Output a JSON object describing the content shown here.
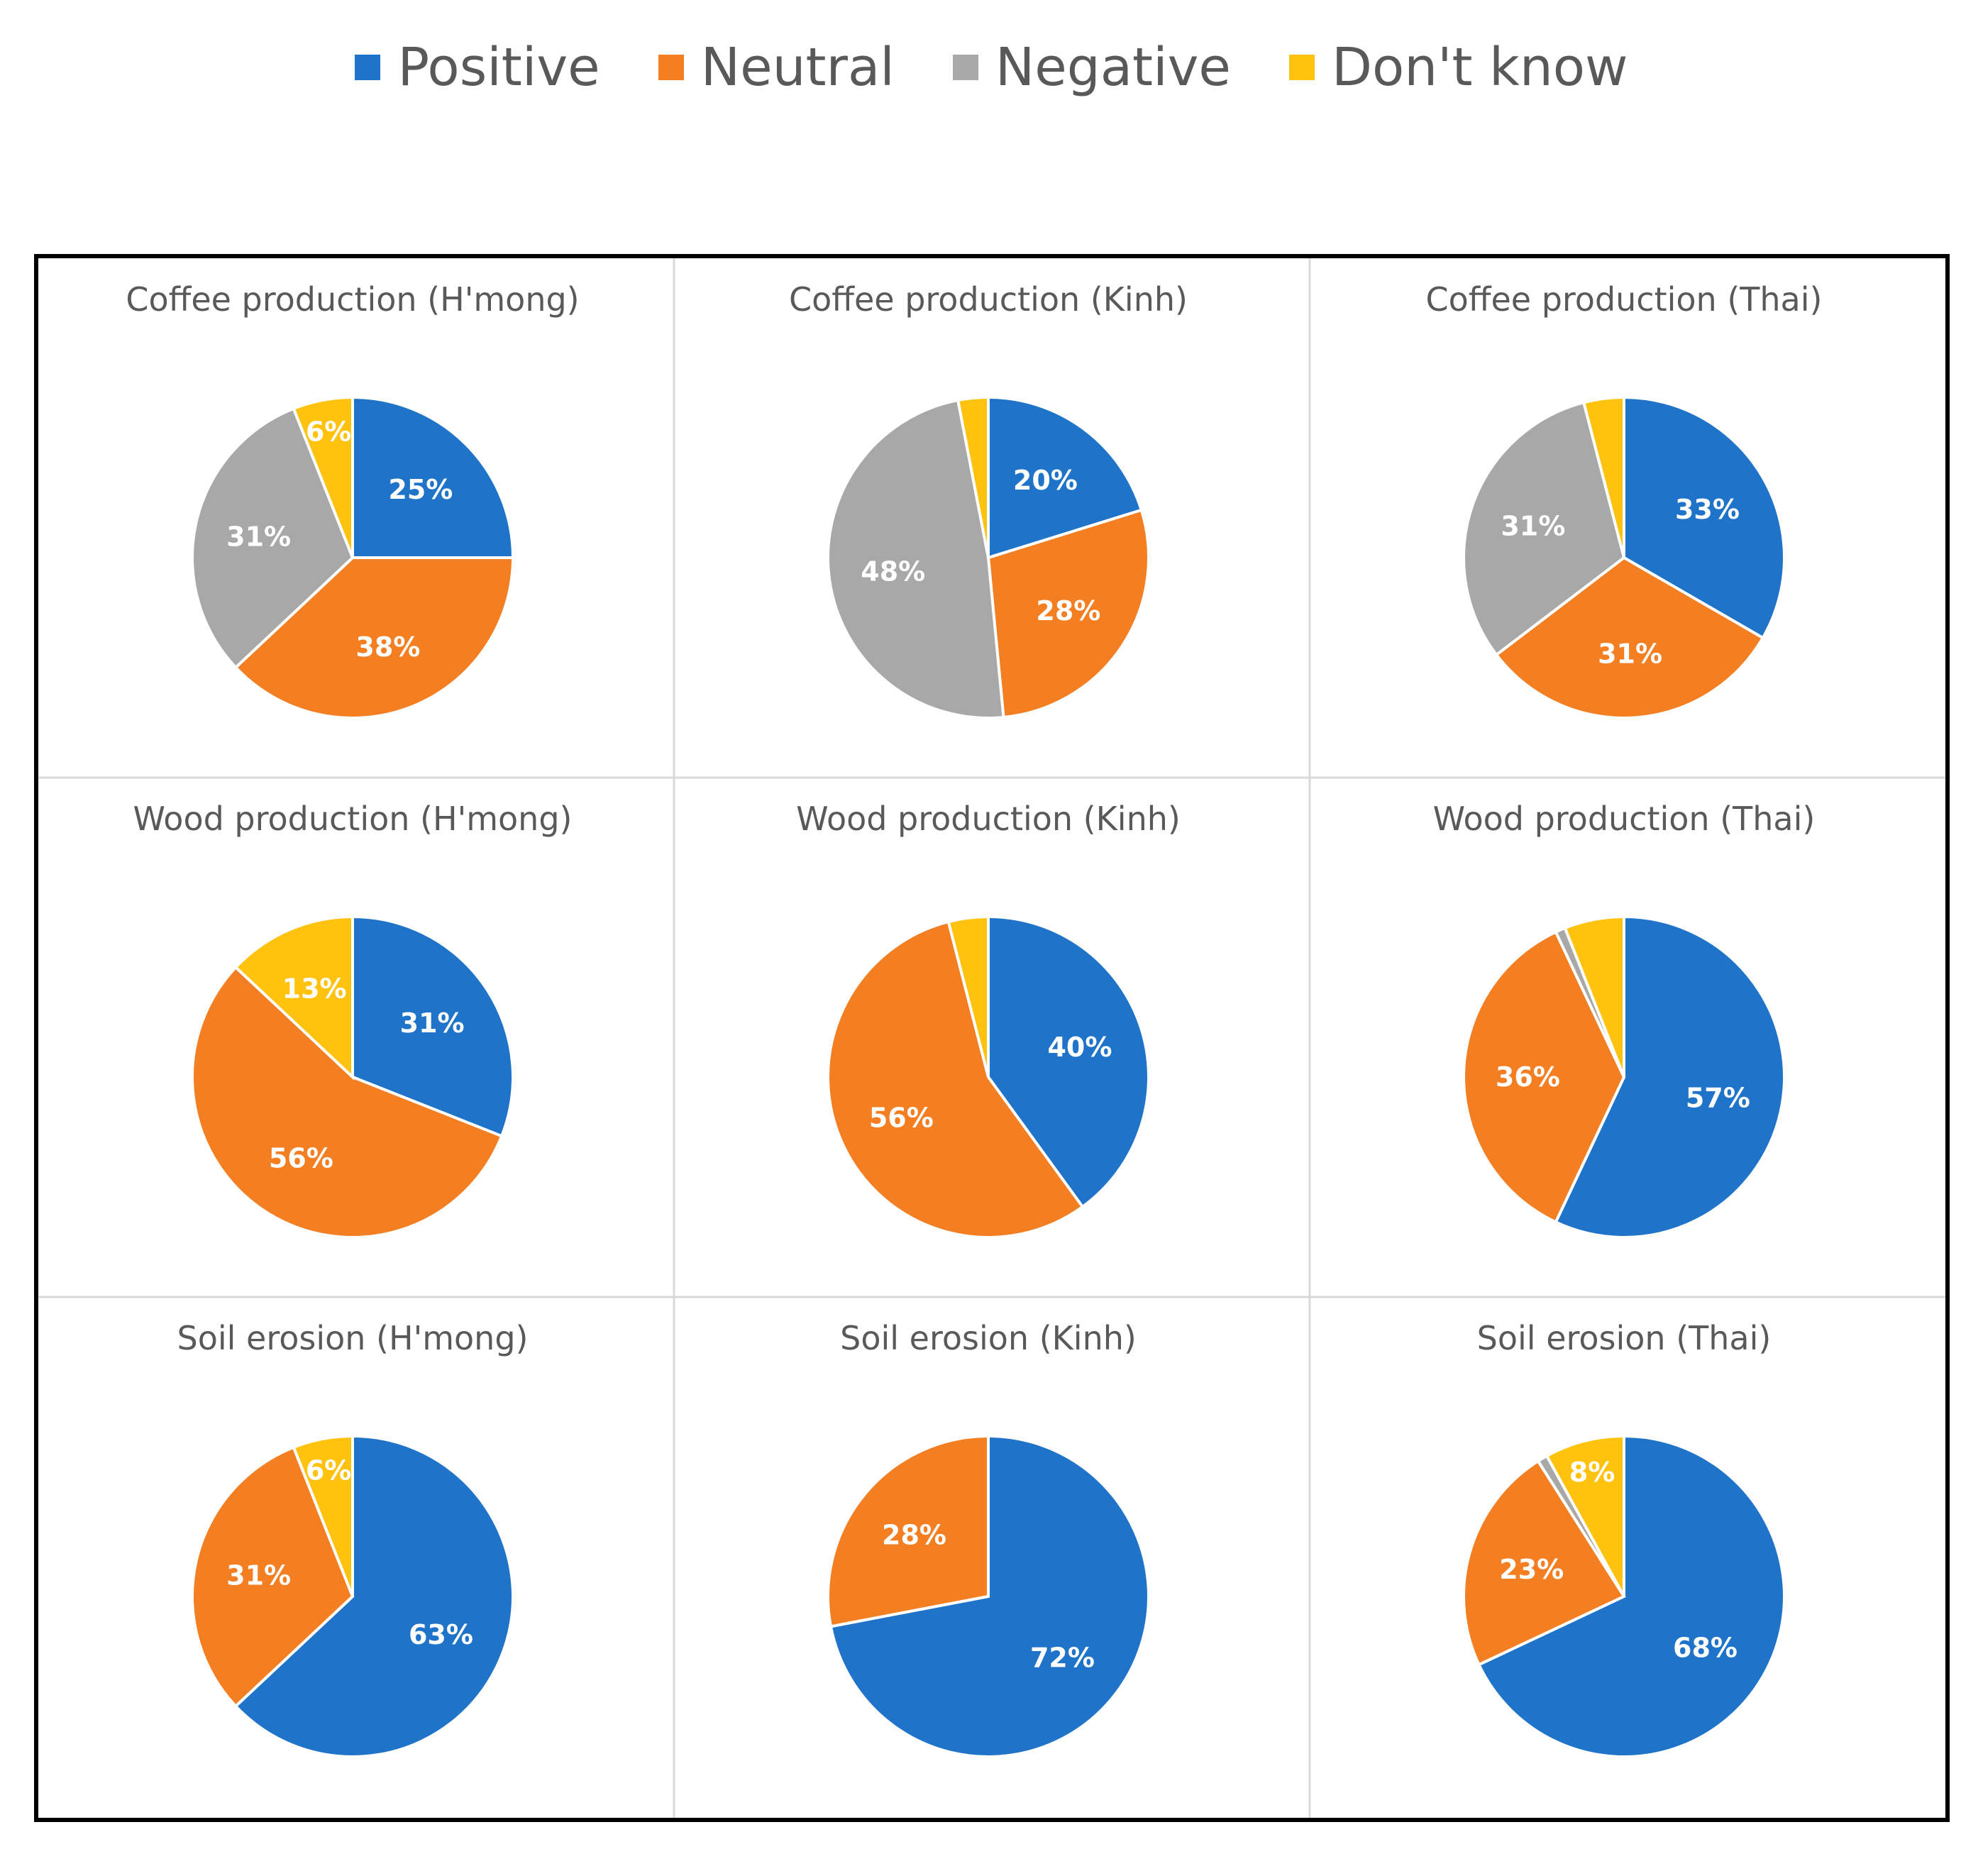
{
  "legend": {
    "items": [
      {
        "label": "Positive",
        "color": "#1F74C9"
      },
      {
        "label": "Neutral",
        "color": "#F47F23"
      },
      {
        "label": "Negative",
        "color": "#A8A8A8"
      },
      {
        "label": "Don't know",
        "color": "#FFC20E"
      }
    ]
  },
  "chart_data": [
    {
      "type": "pie",
      "title": "Coffee production (H'mong)",
      "categories": [
        "Positive",
        "Neutral",
        "Negative",
        "Don't know"
      ],
      "values": [
        25,
        38,
        31,
        6
      ],
      "labels": [
        "25%",
        "38%",
        "31%",
        "6%"
      ]
    },
    {
      "type": "pie",
      "title": "Coffee production (Kinh)",
      "categories": [
        "Positive",
        "Neutral",
        "Negative",
        "Don't know"
      ],
      "values": [
        20,
        28,
        48,
        3
      ],
      "labels": [
        "20%",
        "28%",
        "48%",
        ""
      ]
    },
    {
      "type": "pie",
      "title": "Coffee production (Thai)",
      "categories": [
        "Positive",
        "Neutral",
        "Negative",
        "Don't know"
      ],
      "values": [
        33,
        31,
        31,
        4
      ],
      "labels": [
        "33%",
        "31%",
        "31%",
        ""
      ]
    },
    {
      "type": "pie",
      "title": "Wood production (H'mong)",
      "categories": [
        "Positive",
        "Neutral",
        "Negative",
        "Don't know"
      ],
      "values": [
        31,
        56,
        0,
        13
      ],
      "labels": [
        "31%",
        "56%",
        "",
        "13%"
      ]
    },
    {
      "type": "pie",
      "title": "Wood production (Kinh)",
      "categories": [
        "Positive",
        "Neutral",
        "Negative",
        "Don't know"
      ],
      "values": [
        40,
        56,
        0,
        4
      ],
      "labels": [
        "40%",
        "56%",
        "",
        ""
      ]
    },
    {
      "type": "pie",
      "title": "Wood production (Thai)",
      "categories": [
        "Positive",
        "Neutral",
        "Negative",
        "Don't know"
      ],
      "values": [
        57,
        36,
        1,
        6
      ],
      "labels": [
        "57%",
        "36%",
        "",
        ""
      ]
    },
    {
      "type": "pie",
      "title": "Soil erosion (H'mong)",
      "categories": [
        "Positive",
        "Neutral",
        "Negative",
        "Don't know"
      ],
      "values": [
        63,
        31,
        0,
        6
      ],
      "labels": [
        "63%",
        "31%",
        "",
        "6%"
      ]
    },
    {
      "type": "pie",
      "title": "Soil erosion (Kinh)",
      "categories": [
        "Positive",
        "Neutral",
        "Negative",
        "Don't know"
      ],
      "values": [
        72,
        28,
        0,
        0
      ],
      "labels": [
        "72%",
        "28%",
        "",
        ""
      ]
    },
    {
      "type": "pie",
      "title": "Soil erosion (Thai)",
      "categories": [
        "Positive",
        "Neutral",
        "Negative",
        "Don't know"
      ],
      "values": [
        68,
        23,
        1,
        8
      ],
      "labels": [
        "68%",
        "23%",
        "",
        "8%"
      ]
    }
  ]
}
